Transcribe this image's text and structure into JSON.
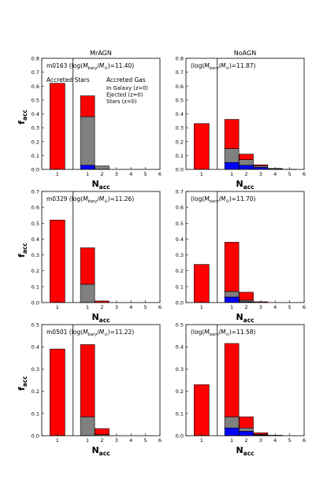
{
  "colors": {
    "stars": "#ff0000",
    "ejected": "#808080",
    "galaxy": "#0000ff",
    "edge": "#000000"
  },
  "columns": [
    "MrAGN",
    "NoAGN"
  ],
  "legend": {
    "stars_title": "Accreted Stars",
    "gas_title": "Accreted Gas",
    "items": [
      {
        "label": "In Galaxy (z=0)",
        "color": "#0000ff"
      },
      {
        "label": "Ejected (z=0)",
        "color": "#808080"
      },
      {
        "label": "Stars (z=0)",
        "color": "#ff0000"
      }
    ]
  },
  "chart_data": [
    {
      "type": "bar",
      "column": "MrAGN",
      "row": 1,
      "label_prefix": "m0163 ",
      "label_value": "=11.40)",
      "ylabel": "f",
      "ylabel_sub": "acc",
      "xlabel": "N",
      "xlabel_sub": "acc",
      "ylim": [
        0,
        0.8
      ],
      "yticks": [
        "0.0",
        "0.1",
        "0.2",
        "0.3",
        "0.4",
        "0.5",
        "0.6",
        "0.7",
        "0.8"
      ],
      "stars_bar": {
        "category": "1",
        "value": 0.62
      },
      "gas_ticks": [
        "1",
        "2",
        "3",
        "4",
        "5",
        "6"
      ],
      "gas_bars": [
        {
          "n": 1,
          "galaxy": 0.03,
          "ejected": 0.35,
          "stars": 0.15
        },
        {
          "n": 2,
          "galaxy": 0.0,
          "ejected": 0.025,
          "stars": 0.0
        },
        {
          "n": 3,
          "galaxy": 0.0,
          "ejected": 0.0,
          "stars": 0.0
        },
        {
          "n": 4,
          "galaxy": 0.0,
          "ejected": 0.0,
          "stars": 0.0
        },
        {
          "n": 5,
          "galaxy": 0.0,
          "ejected": 0.0,
          "stars": 0.0
        }
      ],
      "legend": true
    },
    {
      "type": "bar",
      "column": "NoAGN",
      "row": 1,
      "label_prefix": "",
      "label_value": "=11.87)",
      "ylabel": "",
      "ylabel_sub": "",
      "xlabel": "N",
      "xlabel_sub": "acc",
      "ylim": [
        0,
        0.8
      ],
      "yticks": [
        "0.0",
        "0.1",
        "0.2",
        "0.3",
        "0.4",
        "0.5",
        "0.6",
        "0.7",
        "0.8"
      ],
      "stars_bar": {
        "category": "1",
        "value": 0.33
      },
      "gas_ticks": [
        "1",
        "2",
        "3",
        "4",
        "5",
        "6"
      ],
      "gas_bars": [
        {
          "n": 1,
          "galaxy": 0.05,
          "ejected": 0.1,
          "stars": 0.21
        },
        {
          "n": 2,
          "galaxy": 0.03,
          "ejected": 0.04,
          "stars": 0.04
        },
        {
          "n": 3,
          "galaxy": 0.015,
          "ejected": 0.01,
          "stars": 0.008
        },
        {
          "n": 4,
          "galaxy": 0.003,
          "ejected": 0.004,
          "stars": 0.0
        },
        {
          "n": 5,
          "galaxy": 0.0,
          "ejected": 0.001,
          "stars": 0.0
        }
      ],
      "legend": false
    },
    {
      "type": "bar",
      "column": "MrAGN",
      "row": 2,
      "label_prefix": "m0329 ",
      "label_value": "=11.26)",
      "ylabel": "f",
      "ylabel_sub": "acc",
      "xlabel": "N",
      "xlabel_sub": "acc",
      "ylim": [
        0,
        0.7
      ],
      "yticks": [
        "0.0",
        "0.1",
        "0.2",
        "0.3",
        "0.4",
        "0.5",
        "0.6",
        "0.7"
      ],
      "stars_bar": {
        "category": "1",
        "value": 0.52
      },
      "gas_ticks": [
        "1",
        "2",
        "3",
        "4",
        "5",
        "6"
      ],
      "gas_bars": [
        {
          "n": 1,
          "galaxy": 0.0,
          "ejected": 0.115,
          "stars": 0.23
        },
        {
          "n": 2,
          "galaxy": 0.0,
          "ejected": 0.0,
          "stars": 0.01
        },
        {
          "n": 3,
          "galaxy": 0.0,
          "ejected": 0.0,
          "stars": 0.0
        },
        {
          "n": 4,
          "galaxy": 0.0,
          "ejected": 0.0,
          "stars": 0.0
        },
        {
          "n": 5,
          "galaxy": 0.0,
          "ejected": 0.0,
          "stars": 0.0
        }
      ],
      "legend": false
    },
    {
      "type": "bar",
      "column": "NoAGN",
      "row": 2,
      "label_prefix": "",
      "label_value": "=11.70)",
      "ylabel": "",
      "ylabel_sub": "",
      "xlabel": "N",
      "xlabel_sub": "acc",
      "ylim": [
        0,
        0.7
      ],
      "yticks": [
        "0.0",
        "0.1",
        "0.2",
        "0.3",
        "0.4",
        "0.5",
        "0.6",
        "0.7"
      ],
      "stars_bar": {
        "category": "1",
        "value": 0.24
      },
      "gas_ticks": [
        "1",
        "2",
        "3",
        "4",
        "5",
        "6"
      ],
      "gas_bars": [
        {
          "n": 1,
          "galaxy": 0.035,
          "ejected": 0.035,
          "stars": 0.31
        },
        {
          "n": 2,
          "galaxy": 0.005,
          "ejected": 0.01,
          "stars": 0.05
        },
        {
          "n": 3,
          "galaxy": 0.0,
          "ejected": 0.0,
          "stars": 0.005
        },
        {
          "n": 4,
          "galaxy": 0.0,
          "ejected": 0.0,
          "stars": 0.0
        },
        {
          "n": 5,
          "galaxy": 0.0,
          "ejected": 0.0,
          "stars": 0.0
        }
      ],
      "legend": false
    },
    {
      "type": "bar",
      "column": "MrAGN",
      "row": 3,
      "label_prefix": "m0501 ",
      "label_value": "=11.22)",
      "ylabel": "f",
      "ylabel_sub": "acc",
      "xlabel": "N",
      "xlabel_sub": "acc",
      "ylim": [
        0,
        0.5
      ],
      "yticks": [
        "0.0",
        "0.1",
        "0.2",
        "0.3",
        "0.4",
        "0.5"
      ],
      "stars_bar": {
        "category": "1",
        "value": 0.39
      },
      "gas_ticks": [
        "1",
        "2",
        "3",
        "4",
        "5",
        "6"
      ],
      "gas_bars": [
        {
          "n": 1,
          "galaxy": 0.0,
          "ejected": 0.085,
          "stars": 0.325
        },
        {
          "n": 2,
          "galaxy": 0.0,
          "ejected": 0.005,
          "stars": 0.027
        },
        {
          "n": 3,
          "galaxy": 0.0,
          "ejected": 0.0,
          "stars": 0.0
        },
        {
          "n": 4,
          "galaxy": 0.0,
          "ejected": 0.0,
          "stars": 0.0
        },
        {
          "n": 5,
          "galaxy": 0.0,
          "ejected": 0.0,
          "stars": 0.0
        }
      ],
      "legend": false
    },
    {
      "type": "bar",
      "column": "NoAGN",
      "row": 3,
      "label_prefix": "",
      "label_value": "=11.58)",
      "ylabel": "",
      "ylabel_sub": "",
      "xlabel": "N",
      "xlabel_sub": "acc",
      "ylim": [
        0,
        0.5
      ],
      "yticks": [
        "0.0",
        "0.1",
        "0.2",
        "0.3",
        "0.4",
        "0.5"
      ],
      "stars_bar": {
        "category": "1",
        "value": 0.23
      },
      "gas_ticks": [
        "1",
        "2",
        "3",
        "4",
        "5",
        "6"
      ],
      "gas_bars": [
        {
          "n": 1,
          "galaxy": 0.035,
          "ejected": 0.05,
          "stars": 0.33
        },
        {
          "n": 2,
          "galaxy": 0.02,
          "ejected": 0.015,
          "stars": 0.05
        },
        {
          "n": 3,
          "galaxy": 0.003,
          "ejected": 0.003,
          "stars": 0.007
        },
        {
          "n": 4,
          "galaxy": 0.0,
          "ejected": 0.002,
          "stars": 0.0
        },
        {
          "n": 5,
          "galaxy": 0.0,
          "ejected": 0.0,
          "stars": 0.0
        }
      ],
      "legend": false
    }
  ]
}
